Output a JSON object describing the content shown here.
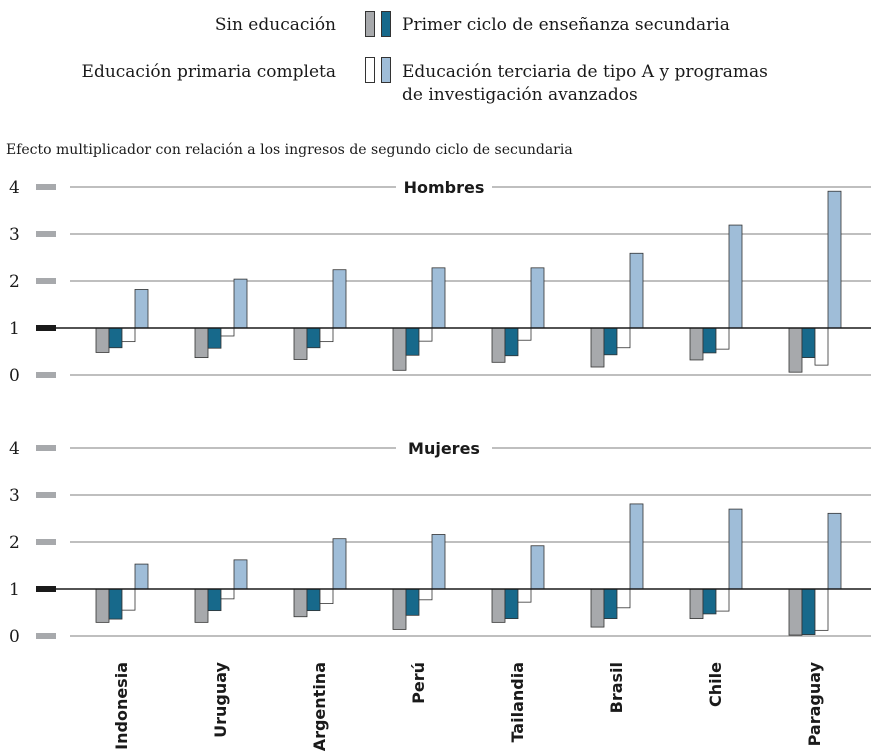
{
  "legend": {
    "items": [
      {
        "label": "Sin educación",
        "series": "s0"
      },
      {
        "label": "Primer ciclo de enseñanza secundaria",
        "series": "s1"
      },
      {
        "label": "Educación primaria completa",
        "series": "s2"
      },
      {
        "label": "Educación terciaria de tipo A y programas",
        "label_line2": "de investigación avanzados",
        "series": "s3"
      }
    ]
  },
  "colors": {
    "s0": "#a7a9ac",
    "s1": "#17698b",
    "s2": "#ffffff",
    "s3": "#9fbdd8",
    "axis_tick": "#a7a9ac",
    "axis_tick_base": "#1a1a1a",
    "gridline": "#555555"
  },
  "chart_data": {
    "type": "bar",
    "title": "Efecto multiplicador con relación a los ingresos de segundo ciclo de secundaria",
    "baseline": 1,
    "categories": [
      "Indonesia",
      "Uruguay",
      "Argentina",
      "Perú",
      "Tailandia",
      "Brasil",
      "Chile",
      "Paraguay"
    ],
    "series_order": [
      "Sin educación",
      "Primer ciclo de enseñanza secundaria",
      "Educación primaria completa",
      "Educación terciaria de tipo A y programas de investigación avanzados"
    ],
    "panels": [
      {
        "title": "Hombres",
        "ylim": [
          0,
          4
        ],
        "yticks": [
          0,
          1,
          2,
          3,
          4
        ],
        "series": [
          {
            "name": "Sin educación",
            "values": [
              0.48,
              0.37,
              0.33,
              0.1,
              0.27,
              0.17,
              0.32,
              0.06
            ]
          },
          {
            "name": "Primer ciclo de enseñanza secundaria",
            "values": [
              0.58,
              0.57,
              0.58,
              0.42,
              0.41,
              0.43,
              0.47,
              0.37
            ]
          },
          {
            "name": "Educación primaria completa",
            "values": [
              0.71,
              0.83,
              0.71,
              0.72,
              0.74,
              0.58,
              0.55,
              0.21
            ]
          },
          {
            "name": "Educación terciaria de tipo A y programas de investigación avanzados",
            "values": [
              1.82,
              2.04,
              2.24,
              2.28,
              2.28,
              2.59,
              3.19,
              3.91
            ]
          }
        ]
      },
      {
        "title": "Mujeres",
        "ylim": [
          0,
          4
        ],
        "yticks": [
          0,
          1,
          2,
          3,
          4
        ],
        "series": [
          {
            "name": "Sin educación",
            "values": [
              0.29,
              0.29,
              0.41,
              0.14,
              0.29,
              0.19,
              0.37,
              0.02
            ]
          },
          {
            "name": "Primer ciclo de enseñanza secundaria",
            "values": [
              0.36,
              0.54,
              0.54,
              0.44,
              0.37,
              0.37,
              0.47,
              0.03
            ]
          },
          {
            "name": "Educación primaria completa",
            "values": [
              0.55,
              0.79,
              0.69,
              0.77,
              0.72,
              0.6,
              0.53,
              0.12
            ]
          },
          {
            "name": "Educación terciaria de tipo A y programas de investigación avanzados",
            "values": [
              1.53,
              1.62,
              2.07,
              2.16,
              1.92,
              2.81,
              2.7,
              2.61
            ]
          }
        ]
      }
    ]
  }
}
